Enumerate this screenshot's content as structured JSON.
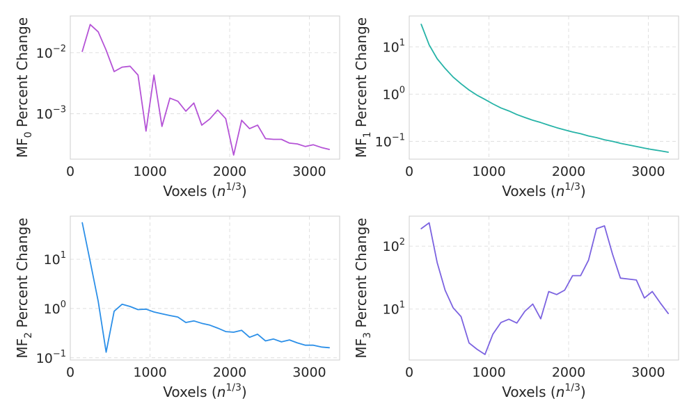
{
  "chart_data": [
    {
      "type": "line",
      "xlabel_main": "Voxels (",
      "xlabel_var": "n",
      "xlabel_sup": "1/3",
      "xlabel_end": ")",
      "ylabel_main": "MF",
      "ylabel_sub": "0",
      "ylabel_end": " Percent Change",
      "yscale": "log",
      "xlim": [
        0,
        3380
      ],
      "ylim": [
        0.00018,
        0.04
      ],
      "xticks": [
        0,
        1000,
        2000,
        3000
      ],
      "yticks": [
        {
          "base": "10",
          "exp": "−2",
          "value": 0.01
        },
        {
          "base": "10",
          "exp": "−3",
          "value": 0.001
        }
      ],
      "color": "#b452d6",
      "x": [
        150,
        250,
        350,
        450,
        550,
        650,
        750,
        850,
        950,
        1050,
        1150,
        1250,
        1350,
        1450,
        1550,
        1650,
        1750,
        1850,
        1950,
        2050,
        2150,
        2250,
        2350,
        2450,
        2550,
        2650,
        2750,
        2850,
        2950,
        3050,
        3150,
        3250
      ],
      "y": [
        0.0105,
        0.029,
        0.022,
        0.011,
        0.0049,
        0.0058,
        0.006,
        0.0043,
        0.00052,
        0.0043,
        0.00062,
        0.0018,
        0.0016,
        0.0011,
        0.0015,
        0.00065,
        0.00082,
        0.00115,
        0.00083,
        0.00021,
        0.00078,
        0.00057,
        0.00065,
        0.00039,
        0.00038,
        0.00038,
        0.00033,
        0.00032,
        0.00029,
        0.00031,
        0.00028,
        0.00026
      ]
    },
    {
      "type": "line",
      "xlabel_main": "Voxels (",
      "xlabel_var": "n",
      "xlabel_sup": "1/3",
      "xlabel_end": ")",
      "ylabel_main": "MF",
      "ylabel_sub": "1",
      "ylabel_end": " Percent Change",
      "yscale": "log",
      "xlim": [
        0,
        3380
      ],
      "ylim": [
        0.042,
        45
      ],
      "xticks": [
        0,
        1000,
        2000,
        3000
      ],
      "yticks": [
        {
          "base": "10",
          "exp": "1",
          "value": 10
        },
        {
          "base": "10",
          "exp": "0",
          "value": 1
        },
        {
          "base": "10",
          "exp": "−1",
          "value": 0.1
        }
      ],
      "color": "#26b3a7",
      "x": [
        150,
        250,
        350,
        450,
        550,
        650,
        750,
        850,
        950,
        1050,
        1150,
        1250,
        1350,
        1450,
        1550,
        1650,
        1750,
        1850,
        1950,
        2050,
        2150,
        2250,
        2350,
        2450,
        2550,
        2650,
        2750,
        2850,
        2950,
        3050,
        3150,
        3250
      ],
      "y": [
        30,
        11,
        5.6,
        3.5,
        2.3,
        1.65,
        1.22,
        0.95,
        0.77,
        0.62,
        0.51,
        0.44,
        0.37,
        0.32,
        0.28,
        0.25,
        0.22,
        0.195,
        0.175,
        0.158,
        0.145,
        0.13,
        0.12,
        0.108,
        0.1,
        0.091,
        0.084,
        0.078,
        0.072,
        0.067,
        0.063,
        0.059
      ]
    },
    {
      "type": "line",
      "xlabel_main": "Voxels (",
      "xlabel_var": "n",
      "xlabel_sup": "1/3",
      "xlabel_end": ")",
      "ylabel_main": "MF",
      "ylabel_sub": "2",
      "ylabel_end": " Percent Change",
      "yscale": "log",
      "xlim": [
        0,
        3380
      ],
      "ylim": [
        0.09,
        75
      ],
      "xticks": [
        0,
        1000,
        2000,
        3000
      ],
      "yticks": [
        {
          "base": "10",
          "exp": "1",
          "value": 10
        },
        {
          "base": "10",
          "exp": "0",
          "value": 1
        },
        {
          "base": "10",
          "exp": "−1",
          "value": 0.1
        }
      ],
      "color": "#2b8fe8",
      "x": [
        150,
        250,
        350,
        450,
        550,
        650,
        750,
        850,
        950,
        1050,
        1150,
        1250,
        1350,
        1450,
        1550,
        1650,
        1750,
        1850,
        1950,
        2050,
        2150,
        2250,
        2350,
        2450,
        2550,
        2650,
        2750,
        2850,
        2950,
        3050,
        3150,
        3250
      ],
      "y": [
        55,
        9,
        1.4,
        0.13,
        0.88,
        1.22,
        1.1,
        0.95,
        0.97,
        0.85,
        0.78,
        0.72,
        0.67,
        0.52,
        0.56,
        0.5,
        0.46,
        0.4,
        0.34,
        0.33,
        0.36,
        0.26,
        0.3,
        0.22,
        0.24,
        0.21,
        0.23,
        0.2,
        0.18,
        0.18,
        0.165,
        0.16
      ]
    },
    {
      "type": "line",
      "xlabel_main": "Voxels (",
      "xlabel_var": "n",
      "xlabel_sup": "1/3",
      "xlabel_end": ")",
      "ylabel_main": "MF",
      "ylabel_sub": "3",
      "ylabel_end": " Percent Change",
      "yscale": "log",
      "xlim": [
        0,
        3380
      ],
      "ylim": [
        1.55,
        300
      ],
      "xticks": [
        0,
        1000,
        2000,
        3000
      ],
      "yticks": [
        {
          "base": "10",
          "exp": "2",
          "value": 100
        },
        {
          "base": "10",
          "exp": "1",
          "value": 10
        }
      ],
      "color": "#7b62e0",
      "x": [
        150,
        250,
        350,
        450,
        550,
        650,
        750,
        850,
        950,
        1050,
        1150,
        1250,
        1350,
        1450,
        1550,
        1650,
        1750,
        1850,
        1950,
        2050,
        2150,
        2250,
        2350,
        2450,
        2550,
        2650,
        2750,
        2850,
        2950,
        3050,
        3150,
        3250
      ],
      "y": [
        190,
        235,
        55,
        20,
        10.5,
        7.6,
        2.9,
        2.3,
        1.9,
        4,
        6.1,
        6.9,
        6,
        9.2,
        12,
        7,
        19,
        17,
        20,
        34,
        34,
        60,
        190,
        210,
        75,
        31,
        30,
        29,
        15,
        19,
        12.5,
        8.5
      ]
    }
  ]
}
